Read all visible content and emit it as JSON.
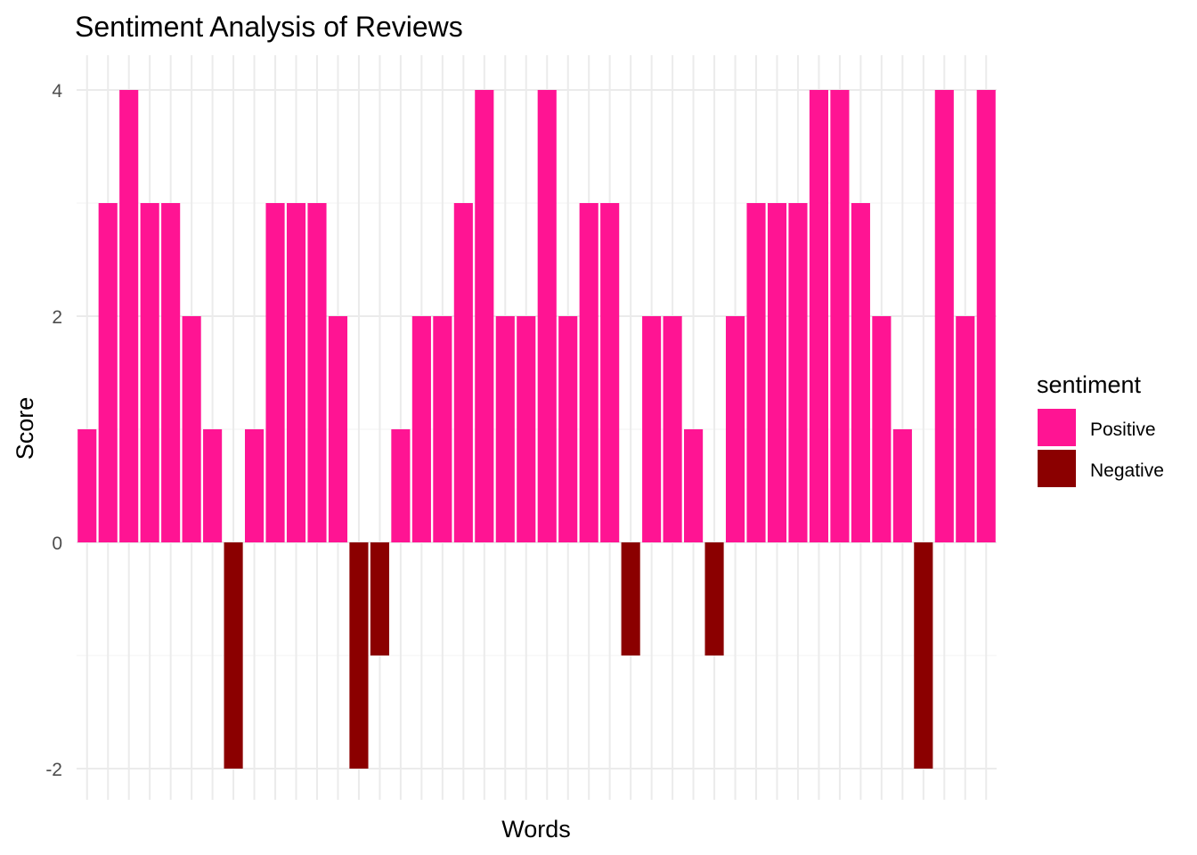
{
  "chart_data": {
    "type": "bar",
    "title": "Sentiment Analysis of Reviews",
    "xlabel": "Words",
    "ylabel": "Score",
    "ylim": [
      -2.3,
      4.3
    ],
    "yticks": [
      -2,
      0,
      2,
      4
    ],
    "ytick_labels": [
      "-2",
      "0",
      "2",
      "4"
    ],
    "grid": true,
    "x_tick_labels_shown": false,
    "values": [
      1,
      3,
      4,
      3,
      3,
      2,
      1,
      -2,
      1,
      3,
      3,
      3,
      2,
      -2,
      -1,
      1,
      2,
      2,
      3,
      4,
      2,
      2,
      4,
      2,
      3,
      3,
      -1,
      2,
      2,
      1,
      -1,
      2,
      3,
      3,
      3,
      4,
      4,
      3,
      2,
      1,
      -2,
      4,
      2,
      4
    ],
    "legend": {
      "title": "sentiment",
      "position": "right",
      "entries": [
        {
          "label": "Positive",
          "color": "#FF1493"
        },
        {
          "label": "Negative",
          "color": "#8B0000"
        }
      ]
    },
    "colors": {
      "positive": "#FF1493",
      "negative": "#8B0000"
    }
  }
}
